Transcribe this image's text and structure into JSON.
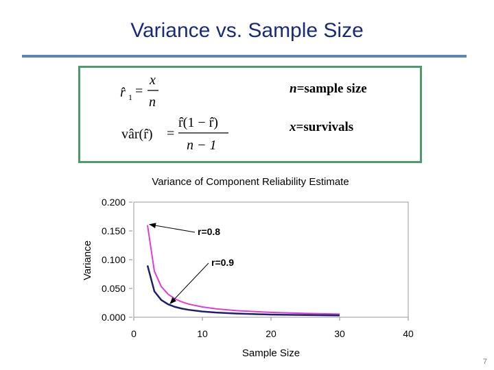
{
  "slide": {
    "title": "Variance vs. Sample Size",
    "page_number": "7"
  },
  "formulas": {
    "estimator_lhs": "r̂",
    "estimator_sub": "1",
    "estimator_num": "x",
    "estimator_den": "n",
    "variance_lhs": "vâr(r̂)",
    "variance_num": "r̂(1 − r̂)",
    "variance_den": "n − 1",
    "equals": "="
  },
  "definitions": {
    "n_symbol": "n",
    "n_text": "=sample size",
    "x_symbol": "x",
    "x_text": "=survivals"
  },
  "chart_data": {
    "type": "line",
    "title": "Variance of Component Reliability Estimate",
    "xlabel": "Sample Size",
    "ylabel": "Variance",
    "xlim": [
      0,
      40
    ],
    "ylim": [
      0,
      0.2
    ],
    "xticks": [
      "0",
      "10",
      "20",
      "30",
      "40"
    ],
    "yticks": [
      "0.000",
      "0.050",
      "0.100",
      "0.150",
      "0.200"
    ],
    "grid": false,
    "series": [
      {
        "name": "r=0.8",
        "color": "#e23ad8",
        "x": [
          2,
          3,
          4,
          5,
          6,
          7,
          8,
          10,
          12,
          15,
          20,
          25,
          30
        ],
        "y": [
          0.16,
          0.08,
          0.0533,
          0.04,
          0.032,
          0.0267,
          0.0229,
          0.0178,
          0.0145,
          0.0114,
          0.0084,
          0.0067,
          0.0055
        ]
      },
      {
        "name": "r=0.9",
        "color": "#1b1f6e",
        "x": [
          2,
          3,
          4,
          5,
          6,
          7,
          8,
          10,
          12,
          15,
          20,
          25,
          30
        ],
        "y": [
          0.09,
          0.045,
          0.03,
          0.0225,
          0.018,
          0.015,
          0.0129,
          0.01,
          0.0082,
          0.0064,
          0.0047,
          0.0038,
          0.0031
        ]
      }
    ],
    "annotations": [
      {
        "text": "r=0.8",
        "points_to_x": 2,
        "points_to_y": 0.16
      },
      {
        "text": "r=0.9",
        "points_to_x": 5,
        "points_to_y": 0.0225
      }
    ]
  }
}
